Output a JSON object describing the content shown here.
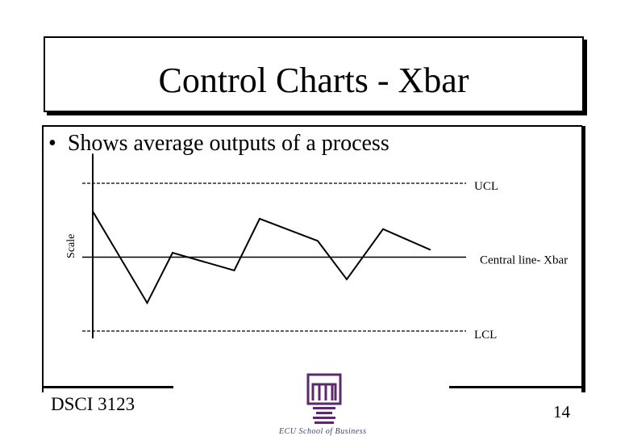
{
  "slide": {
    "title": "Control Charts - Xbar",
    "bullet": "Shows average outputs of a process",
    "footer_left": "DSCI 3123",
    "page_number": "14",
    "logo_caption": "ECU School of Business"
  },
  "chart_data": {
    "type": "line",
    "ylabel": "Scale",
    "lines": {
      "ucl_label": "UCL",
      "center_label": "Central line- Xbar",
      "lcl_label": "LCL"
    },
    "ucl": 10,
    "center": 5,
    "lcl": 0,
    "ylim": [
      -0.5,
      12
    ],
    "xlim": [
      0,
      10
    ],
    "series": [
      {
        "x": [
          0,
          1.5,
          2.2,
          3.9,
          4.6,
          6.2,
          7.0,
          8.0,
          9.3
        ],
        "values": [
          8.1,
          1.9,
          5.3,
          4.1,
          7.6,
          6.1,
          3.5,
          6.9,
          5.5
        ]
      }
    ],
    "colors": {
      "line": "#000000",
      "limits": "#000000"
    }
  }
}
